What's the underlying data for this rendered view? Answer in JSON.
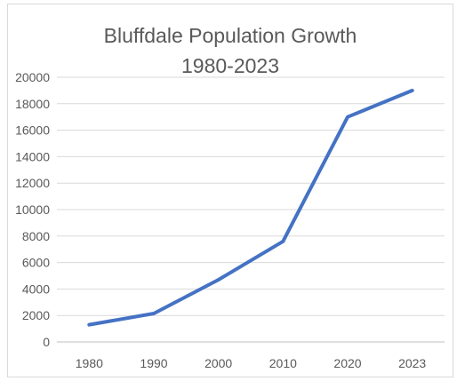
{
  "chart_data": {
    "type": "line",
    "title": "Bluffdale Population Growth",
    "subtitle": "1980-2023",
    "xlabel": "",
    "ylabel": "",
    "categories": [
      "1980",
      "1990",
      "2000",
      "2010",
      "2020",
      "2023"
    ],
    "series": [
      {
        "values": [
          1300,
          2150,
          4700,
          7600,
          17000,
          19000
        ],
        "color": "#4472c4"
      }
    ],
    "ylim": [
      0,
      20000
    ],
    "yticks": [
      "0",
      "2000",
      "4000",
      "6000",
      "8000",
      "10000",
      "12000",
      "14000",
      "16000",
      "18000",
      "20000"
    ],
    "grid": true,
    "legend": "none"
  }
}
